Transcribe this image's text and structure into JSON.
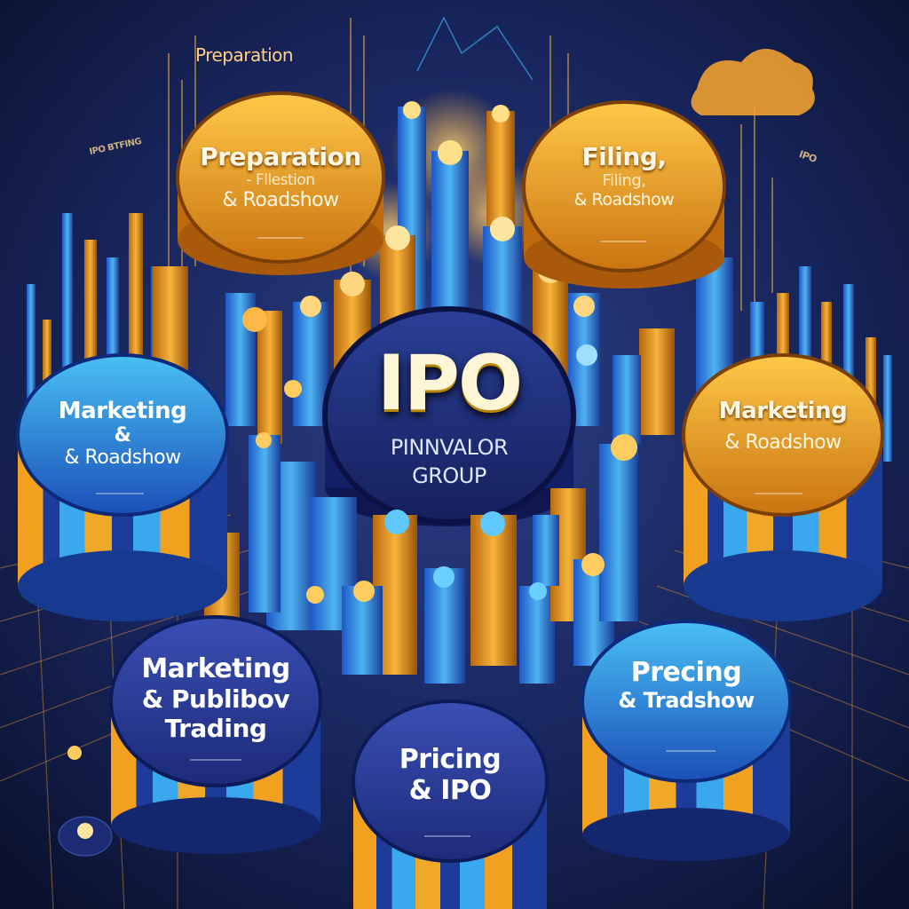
{
  "top_label": "Preparation",
  "center": {
    "title": "IPO",
    "line1": "PINNVALOR",
    "line2": "GROUP"
  },
  "stages": [
    {
      "id": "tl",
      "lines": [
        "Preparation",
        "- Fllestion",
        "& Roadshow"
      ],
      "color": "#f0a020"
    },
    {
      "id": "tr",
      "lines": [
        "Filing,",
        "Filing,",
        "& Roadshow"
      ],
      "color": "#f0a020"
    },
    {
      "id": "ml",
      "lines": [
        "Marketing",
        "&",
        "& Roadshow"
      ],
      "color": "#2a88d6"
    },
    {
      "id": "mr",
      "lines": [
        "Marketing",
        "& Roadshow"
      ],
      "color": "#f0a020"
    },
    {
      "id": "bl",
      "lines": [
        "Marketing",
        "& Publibov",
        "Trading"
      ],
      "color": "#2a5bc4"
    },
    {
      "id": "bc",
      "lines": [
        "Pricing",
        "& IPO"
      ],
      "color": "#2a5bc4"
    },
    {
      "id": "br",
      "lines": [
        "Precing",
        "& Tradshow"
      ],
      "color": "#2a9ee6"
    }
  ],
  "side_text": {
    "left": "IPO BTFING",
    "right": "IPO"
  },
  "colors": {
    "background": "#101a3c",
    "gold": "#f2a722",
    "blue": "#2e8fe0",
    "navy": "#1c2a6a"
  }
}
